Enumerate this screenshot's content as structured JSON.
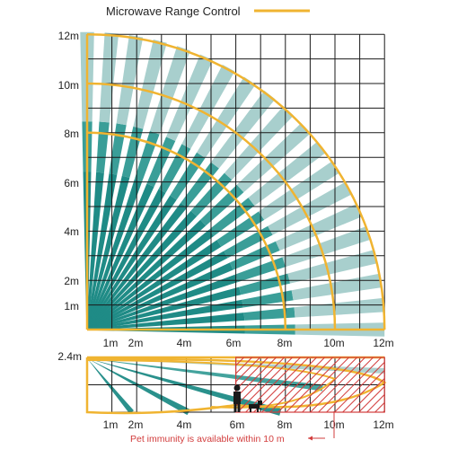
{
  "legend": {
    "title": "Microwave Range Control",
    "line_color": "#f0b431"
  },
  "top_view": {
    "y_ticks": [
      "12m",
      "10m",
      "8m",
      "6m",
      "4m",
      "2m",
      "1m"
    ],
    "x_ticks": [
      "1m",
      "2m",
      "4m",
      "6m",
      "8m",
      "10m",
      "12m"
    ],
    "arc_radii_m": [
      8,
      10,
      12
    ]
  },
  "side_view": {
    "height_label": "2.4m",
    "x_ticks": [
      "1m",
      "2m",
      "4m",
      "6m",
      "8m",
      "10m",
      "12m"
    ],
    "note": "Pet immunity is available within 10 m"
  },
  "colors": {
    "dark_teal": "#1f8b86",
    "mid_teal": "#3a9e98",
    "light_teal": "#a8cfcd",
    "grid": "#1a1a1a",
    "arc": "#f0b431",
    "red": "#d23c3c"
  }
}
